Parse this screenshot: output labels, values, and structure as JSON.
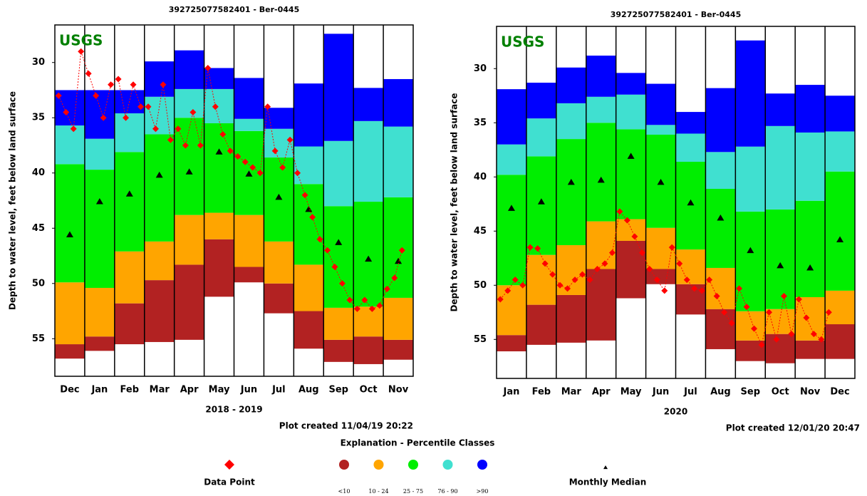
{
  "chart_data": [
    {
      "type": "percentile_bands",
      "title": "392725077582401 - Ber-0445",
      "logo": "USGS",
      "y_label": "Depth to water level, feet below land surface",
      "x_label": "2018 - 2019",
      "note": "Plot created 11/04/19 20:22",
      "inverted": true,
      "categories": [
        "Dec",
        "Jan",
        "Feb",
        "Mar",
        "Apr",
        "May",
        "Jun",
        "Jul",
        "Aug",
        "Sep",
        "Oct",
        "Nov"
      ],
      "ylim": [
        26.6,
        58.4
      ],
      "yticks": [
        30,
        35,
        40,
        45,
        50,
        55
      ],
      "series": [
        {
          "name": "<10",
          "color": "#b22222",
          "top": [
            55.5,
            54.8,
            51.8,
            49.7,
            48.3,
            46.0,
            48.5,
            50.0,
            52.5,
            55.1,
            54.8,
            55.1
          ],
          "bottom": [
            56.8,
            56.1,
            55.5,
            55.3,
            55.1,
            51.2,
            49.9,
            52.7,
            55.9,
            57.1,
            57.3,
            56.9
          ]
        },
        {
          "name": "10 - 24",
          "color": "#ffa500",
          "top": [
            49.9,
            50.4,
            47.1,
            46.2,
            43.8,
            43.6,
            43.8,
            46.2,
            48.3,
            52.2,
            52.1,
            51.3
          ],
          "bottom": [
            55.5,
            54.8,
            51.8,
            49.7,
            48.3,
            46.0,
            48.5,
            50.0,
            52.5,
            55.1,
            54.8,
            55.1
          ]
        },
        {
          "name": "25 - 75",
          "color": "#00ee00",
          "top": [
            39.2,
            39.7,
            38.1,
            36.5,
            35.0,
            35.5,
            36.2,
            38.6,
            41.0,
            43.0,
            42.6,
            42.2
          ],
          "bottom": [
            49.9,
            50.4,
            47.1,
            46.2,
            43.8,
            43.6,
            43.8,
            46.2,
            48.3,
            52.2,
            52.1,
            51.3
          ]
        },
        {
          "name": "76 - 90",
          "color": "#40e0d0",
          "top": [
            35.7,
            36.9,
            34.6,
            33.1,
            32.4,
            32.4,
            35.1,
            36.0,
            37.6,
            37.1,
            35.3,
            35.8
          ],
          "bottom": [
            39.2,
            39.7,
            38.1,
            36.5,
            35.0,
            35.5,
            36.2,
            38.6,
            41.0,
            43.0,
            42.6,
            42.2
          ]
        },
        {
          "name": ">90",
          "color": "#0000ff",
          "top": [
            32.5,
            32.5,
            32.5,
            29.9,
            28.9,
            30.5,
            31.4,
            34.1,
            31.9,
            27.4,
            32.3,
            31.5
          ],
          "bottom": [
            35.7,
            36.9,
            34.6,
            33.1,
            32.4,
            32.4,
            35.1,
            36.0,
            37.6,
            37.1,
            35.3,
            35.8
          ]
        }
      ],
      "medians": {
        "name": "Monthly Median",
        "color": "#000000",
        "values": [
          45.6,
          42.6,
          41.9,
          40.2,
          39.9,
          38.1,
          40.1,
          42.2,
          43.3,
          46.3,
          47.8,
          48.0
        ]
      },
      "points": {
        "name": "Data Point",
        "color": "#ff0000",
        "values": [
          33,
          34.5,
          36,
          29,
          31,
          33,
          35,
          32,
          31.5,
          35,
          32,
          34,
          34,
          36,
          32,
          37,
          36,
          37.5,
          34.5,
          37.5,
          30.5,
          34,
          36.5,
          38,
          38.5,
          39,
          39.5,
          40,
          34,
          38,
          39.5,
          37,
          40,
          42,
          44,
          46,
          47,
          48.5,
          50,
          51.5,
          52.3,
          51.5,
          52.3,
          52,
          50.5,
          49.5,
          47,
          null
        ]
      }
    },
    {
      "type": "percentile_bands",
      "title": "392725077582401 - Ber-0445",
      "logo": "USGS",
      "y_label": "Depth to water level, feet below land surface",
      "x_label": "2020",
      "note": "Plot created 12/01/20 20:47",
      "inverted": true,
      "categories": [
        "Jan",
        "Feb",
        "Mar",
        "Apr",
        "May",
        "Jun",
        "Jul",
        "Aug",
        "Sep",
        "Oct",
        "Nov",
        "Dec"
      ],
      "ylim": [
        26.1,
        58.6
      ],
      "yticks": [
        30,
        35,
        40,
        45,
        50,
        55
      ],
      "series": [
        {
          "color": "#b22222",
          "top": [
            54.6,
            51.8,
            50.9,
            48.5,
            45.9,
            48.5,
            49.9,
            52.2,
            55.1,
            54.5,
            55.1,
            53.6
          ],
          "bottom": [
            56.1,
            55.5,
            55.3,
            55.1,
            51.2,
            49.9,
            52.7,
            55.9,
            57.0,
            57.2,
            56.8,
            56.8
          ]
        },
        {
          "color": "#ffa500",
          "top": [
            50.0,
            47.2,
            46.3,
            44.1,
            43.9,
            44.7,
            46.7,
            48.4,
            52.4,
            52.2,
            51.1,
            50.5
          ],
          "bottom": [
            54.6,
            51.8,
            50.9,
            48.5,
            45.9,
            48.5,
            49.9,
            52.2,
            55.1,
            54.5,
            55.1,
            53.6
          ]
        },
        {
          "color": "#00ee00",
          "top": [
            39.8,
            38.1,
            36.5,
            35.0,
            35.6,
            36.1,
            38.6,
            41.1,
            43.2,
            43.0,
            42.2,
            39.5
          ],
          "bottom": [
            50.0,
            47.2,
            46.3,
            44.1,
            43.9,
            44.7,
            46.7,
            48.4,
            52.4,
            52.2,
            51.1,
            50.5
          ]
        },
        {
          "color": "#40e0d0",
          "top": [
            37.0,
            34.6,
            33.2,
            32.6,
            32.4,
            35.2,
            36.0,
            37.7,
            37.2,
            35.3,
            35.9,
            35.8
          ],
          "bottom": [
            39.8,
            38.1,
            36.5,
            35.0,
            35.6,
            36.1,
            38.6,
            41.1,
            43.2,
            43.0,
            42.2,
            39.5
          ]
        },
        {
          "color": "#0000ff",
          "top": [
            31.9,
            31.3,
            29.9,
            28.8,
            30.4,
            31.4,
            34.0,
            31.8,
            27.4,
            32.3,
            31.5,
            32.5
          ],
          "bottom": [
            37.0,
            34.6,
            33.2,
            32.6,
            32.4,
            35.2,
            36.0,
            37.7,
            37.2,
            35.3,
            35.9,
            35.8
          ]
        }
      ],
      "medians": {
        "color": "#000000",
        "values": [
          42.9,
          42.3,
          40.5,
          40.3,
          38.1,
          40.5,
          42.4,
          43.8,
          46.8,
          48.2,
          48.4,
          45.8
        ]
      },
      "points": {
        "color": "#ff0000",
        "values": [
          51.3,
          50.5,
          49.5,
          50,
          46.5,
          46.6,
          48,
          49,
          50,
          50.3,
          49.5,
          49,
          49.5,
          48.5,
          48,
          47,
          43.2,
          44,
          45.5,
          47,
          48.5,
          49.5,
          50.5,
          46.5,
          48,
          49.5,
          50.3,
          50.5,
          49.5,
          51,
          52.5,
          53.5,
          50.3,
          52,
          54,
          55.5,
          52.5,
          55,
          51,
          54.5,
          51.3,
          53,
          54.5,
          55,
          52.5,
          null,
          null,
          null
        ]
      }
    }
  ],
  "legend": {
    "title": "Explanation - Percentile Classes"
  }
}
